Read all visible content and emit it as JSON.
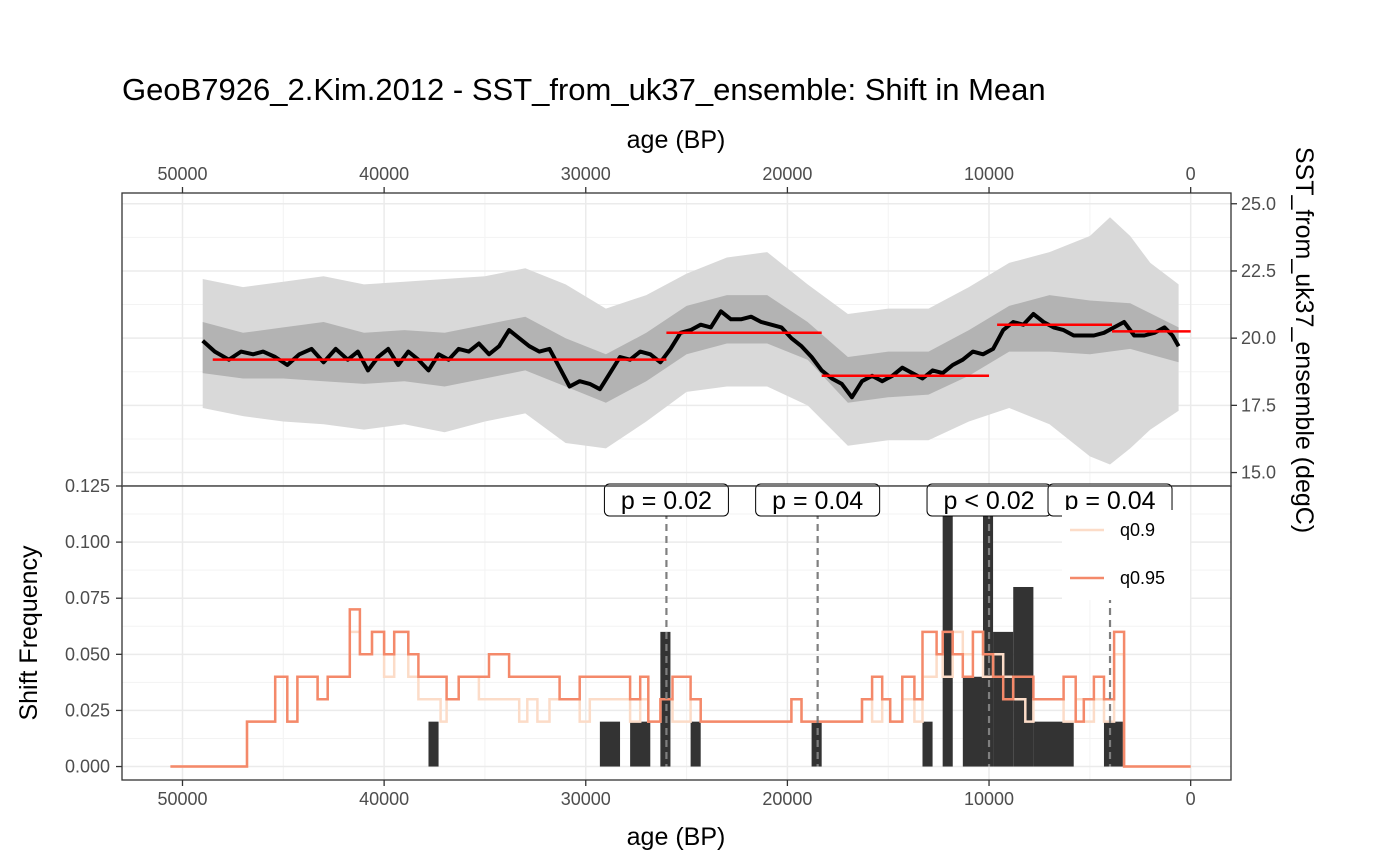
{
  "chart_data": [
    {
      "type": "line",
      "panel": "top",
      "title": "GeoB7926_2.Kim.2012 - SST_from_uk37_ensemble: Shift in Mean",
      "xlabel": "age (BP)",
      "ylabel": "SST_from_uk37_ensemble (degC)",
      "xlim": [
        53000,
        -2000
      ],
      "ylim": [
        14.5,
        25.4
      ],
      "x_ticks": [
        50000,
        40000,
        30000,
        20000,
        10000,
        0
      ],
      "y_ticks": [
        15.0,
        17.5,
        20.0,
        22.5,
        25.0
      ],
      "y_tick_labels": [
        "15.0",
        "17.5",
        "20.0",
        "22.5",
        "25.0"
      ],
      "grid": true,
      "median": {
        "x": [
          49000,
          48400,
          47700,
          47100,
          46500,
          46000,
          45400,
          44800,
          44200,
          43600,
          43000,
          42400,
          41800,
          41300,
          40800,
          40300,
          39800,
          39300,
          38800,
          38300,
          37800,
          37300,
          36800,
          36300,
          35800,
          35300,
          34800,
          34300,
          33800,
          33300,
          32800,
          32300,
          31800,
          31300,
          30800,
          30300,
          29800,
          29300,
          28800,
          28300,
          27800,
          27300,
          26800,
          26300,
          25800,
          25300,
          24800,
          24300,
          23800,
          23300,
          22800,
          22300,
          21800,
          21300,
          20800,
          20300,
          19800,
          19300,
          18800,
          18300,
          17800,
          17300,
          16800,
          16300,
          15800,
          15300,
          14800,
          14300,
          13800,
          13300,
          12800,
          12300,
          11800,
          11300,
          10800,
          10300,
          9800,
          9300,
          8800,
          8300,
          7800,
          7300,
          6800,
          6300,
          5800,
          5300,
          4800,
          4300,
          3800,
          3300,
          2800,
          2300,
          1800,
          1300,
          900,
          600
        ],
        "y": [
          19.9,
          19.5,
          19.2,
          19.5,
          19.4,
          19.5,
          19.3,
          19.0,
          19.4,
          19.6,
          19.1,
          19.6,
          19.2,
          19.5,
          18.8,
          19.3,
          19.6,
          19.0,
          19.5,
          19.2,
          18.8,
          19.4,
          19.2,
          19.6,
          19.5,
          19.8,
          19.4,
          19.7,
          20.3,
          20.0,
          19.7,
          19.5,
          19.6,
          18.9,
          18.2,
          18.4,
          18.3,
          18.1,
          18.7,
          19.3,
          19.2,
          19.5,
          19.4,
          19.1,
          19.6,
          20.2,
          20.3,
          20.5,
          20.4,
          21.0,
          20.7,
          20.7,
          20.8,
          20.6,
          20.5,
          20.4,
          20.0,
          19.7,
          19.3,
          18.8,
          18.5,
          18.3,
          17.8,
          18.4,
          18.6,
          18.4,
          18.6,
          18.9,
          18.7,
          18.5,
          18.8,
          18.7,
          19.0,
          19.2,
          19.5,
          19.4,
          19.6,
          20.3,
          20.6,
          20.5,
          20.9,
          20.6,
          20.4,
          20.3,
          20.1,
          20.1,
          20.1,
          20.2,
          20.4,
          20.6,
          20.1,
          20.1,
          20.2,
          20.4,
          20.1,
          19.7
        ]
      },
      "band_50": {
        "x": [
          49000,
          47000,
          45000,
          43000,
          41000,
          39000,
          37000,
          35000,
          33000,
          31000,
          29000,
          27000,
          25000,
          23000,
          21000,
          19000,
          17000,
          15000,
          13000,
          11000,
          9000,
          7000,
          5000,
          3000,
          600
        ],
        "lower": [
          18.7,
          18.5,
          18.5,
          18.4,
          18.3,
          18.4,
          18.2,
          18.5,
          18.8,
          18.2,
          17.6,
          18.4,
          19.4,
          19.8,
          19.8,
          19.2,
          17.6,
          17.8,
          17.9,
          18.6,
          19.5,
          19.5,
          19.4,
          19.6,
          19.1
        ],
        "upper": [
          20.6,
          20.2,
          20.4,
          20.6,
          20.2,
          20.3,
          20.2,
          20.5,
          20.8,
          20.0,
          19.4,
          20.2,
          21.2,
          21.6,
          21.6,
          20.6,
          19.3,
          19.5,
          19.5,
          20.3,
          21.2,
          21.6,
          21.4,
          21.3,
          20.4
        ]
      },
      "band_95": {
        "x": [
          49000,
          47000,
          45000,
          43000,
          41000,
          39000,
          37000,
          35000,
          33000,
          31000,
          29000,
          27000,
          25000,
          23000,
          21000,
          19000,
          17000,
          15000,
          13000,
          11000,
          9000,
          7000,
          5000,
          4000,
          3000,
          2000,
          600
        ],
        "lower": [
          17.4,
          17.1,
          16.9,
          16.8,
          16.6,
          16.8,
          16.5,
          16.9,
          17.2,
          16.1,
          15.9,
          16.9,
          18.0,
          18.2,
          18.2,
          17.5,
          16.0,
          16.2,
          16.2,
          16.9,
          17.4,
          16.8,
          15.6,
          15.3,
          15.9,
          16.6,
          17.3
        ],
        "upper": [
          22.2,
          21.9,
          22.1,
          22.3,
          22.0,
          22.1,
          22.2,
          22.3,
          22.6,
          22.0,
          21.1,
          21.6,
          22.4,
          23.0,
          23.2,
          22.0,
          20.9,
          21.1,
          21.1,
          21.9,
          22.8,
          23.2,
          23.8,
          24.5,
          23.8,
          22.8,
          22.0
        ]
      },
      "segments": [
        {
          "x0": 48500,
          "x1": 26000,
          "y": 19.2
        },
        {
          "x0": 26000,
          "x1": 18300,
          "y": 20.2
        },
        {
          "x0": 18300,
          "x1": 10000,
          "y": 18.6
        },
        {
          "x0": 9600,
          "x1": 3900,
          "y": 20.5
        },
        {
          "x0": 3900,
          "x1": 0,
          "y": 20.25
        }
      ],
      "colors": {
        "median": "#000000",
        "band_50": "#b3b3b3",
        "band_95": "#d9d9d9",
        "segments": "#ff0000"
      }
    },
    {
      "type": "bar",
      "panel": "bottom",
      "xlabel": "age (BP)",
      "ylabel": "Shift Frequency",
      "xlim": [
        53000,
        -2000
      ],
      "ylim": [
        -0.006,
        0.125
      ],
      "x_ticks": [
        50000,
        40000,
        30000,
        20000,
        10000,
        0
      ],
      "y_ticks": [
        0.0,
        0.025,
        0.05,
        0.075,
        0.1,
        0.125
      ],
      "y_tick_labels": [
        "0.000",
        "0.025",
        "0.050",
        "0.075",
        "0.100",
        "0.125"
      ],
      "grid": true,
      "bars": [
        {
          "x0": 37800,
          "x1": 37300,
          "y": 0.02
        },
        {
          "x0": 29300,
          "x1": 28300,
          "y": 0.02
        },
        {
          "x0": 27800,
          "x1": 26800,
          "y": 0.02
        },
        {
          "x0": 26300,
          "x1": 25800,
          "y": 0.06
        },
        {
          "x0": 24800,
          "x1": 24300,
          "y": 0.02
        },
        {
          "x0": 18800,
          "x1": 18300,
          "y": 0.02
        },
        {
          "x0": 13300,
          "x1": 12800,
          "y": 0.02
        },
        {
          "x0": 12300,
          "x1": 11800,
          "y": 0.12
        },
        {
          "x0": 11300,
          "x1": 10300,
          "y": 0.04
        },
        {
          "x0": 10300,
          "x1": 9800,
          "y": 0.12
        },
        {
          "x0": 9800,
          "x1": 8800,
          "y": 0.06
        },
        {
          "x0": 8800,
          "x1": 7800,
          "y": 0.08
        },
        {
          "x0": 7800,
          "x1": 5800,
          "y": 0.02
        },
        {
          "x0": 4300,
          "x1": 3300,
          "y": 0.02
        }
      ],
      "p_values": [
        {
          "x": 26000,
          "label": "p = 0.02"
        },
        {
          "x": 18500,
          "label": "p = 0.04"
        },
        {
          "x": 10000,
          "label": "p < 0.02"
        },
        {
          "x": 4000,
          "label": "p = 0.04"
        }
      ],
      "series": [
        {
          "name": "q0.9",
          "color": "#fcdcc8",
          "x": [
            50600,
            46800,
            46800,
            45400,
            45400,
            44800,
            44800,
            44300,
            44300,
            43300,
            43300,
            42800,
            42800,
            41700,
            41700,
            41200,
            41200,
            40600,
            40600,
            40000,
            40000,
            39500,
            39500,
            38800,
            38800,
            38300,
            38300,
            37200,
            37200,
            36900,
            36900,
            36300,
            36300,
            35300,
            35300,
            33300,
            33300,
            32900,
            32900,
            32400,
            32400,
            31800,
            31800,
            30300,
            30300,
            29800,
            29800,
            27800,
            27800,
            27300,
            27300,
            26900,
            26900,
            26300,
            26300,
            25700,
            25700,
            24800,
            24800,
            24300,
            24300,
            23800,
            23800,
            19800,
            19800,
            19300,
            19300,
            16300,
            16300,
            15800,
            15800,
            15300,
            15300,
            14900,
            14900,
            14300,
            14300,
            13700,
            13700,
            13300,
            13300,
            12600,
            12600,
            12300,
            12300,
            11800,
            11800,
            11300,
            11300,
            10800,
            10800,
            10300,
            10300,
            9800,
            9800,
            9300,
            9300,
            8800,
            8800,
            8200,
            8200,
            7800,
            7800,
            6300,
            6300,
            5700,
            5700,
            5300,
            5300,
            4800,
            4800,
            4300,
            4300,
            3800,
            3800,
            3300,
            3300,
            0
          ],
          "y": [
            0,
            0,
            0.02,
            0.02,
            0.04,
            0.04,
            0.02,
            0.02,
            0.04,
            0.04,
            0.03,
            0.03,
            0.04,
            0.04,
            0.06,
            0.06,
            0.05,
            0.05,
            0.06,
            0.06,
            0.04,
            0.04,
            0.06,
            0.06,
            0.04,
            0.04,
            0.03,
            0.03,
            0.02,
            0.02,
            0.03,
            0.03,
            0.04,
            0.04,
            0.03,
            0.03,
            0.02,
            0.02,
            0.03,
            0.03,
            0.02,
            0.02,
            0.03,
            0.03,
            0.02,
            0.02,
            0.03,
            0.03,
            0.02,
            0.02,
            0.03,
            0.03,
            0.02,
            0.02,
            0.03,
            0.03,
            0.02,
            0.02,
            0.03,
            0.03,
            0.02,
            0.02,
            0.02,
            0.02,
            0.03,
            0.03,
            0.02,
            0.02,
            0.03,
            0.03,
            0.02,
            0.02,
            0.03,
            0.03,
            0.02,
            0.02,
            0.03,
            0.03,
            0.02,
            0.02,
            0.04,
            0.04,
            0.05,
            0.05,
            0.04,
            0.04,
            0.06,
            0.06,
            0.05,
            0.05,
            0.06,
            0.06,
            0.04,
            0.04,
            0.05,
            0.05,
            0.04,
            0.04,
            0.03,
            0.03,
            0.02,
            0.02,
            0.03,
            0.03,
            0.02,
            0.02,
            0.03,
            0.03,
            0.02,
            0.02,
            0.03,
            0.03,
            0.02,
            0.02,
            0.05,
            0.05,
            0,
            0
          ]
        },
        {
          "name": "q0.95",
          "color": "#f4896a",
          "x": [
            50600,
            46800,
            46800,
            45400,
            45400,
            44800,
            44800,
            44300,
            44300,
            43300,
            43300,
            42800,
            42800,
            41700,
            41700,
            41200,
            41200,
            40600,
            40600,
            40000,
            40000,
            39500,
            39500,
            38800,
            38800,
            38300,
            38300,
            37200,
            37200,
            36900,
            36900,
            36300,
            36300,
            35300,
            35300,
            34800,
            34800,
            33800,
            33800,
            32900,
            32900,
            31300,
            31300,
            30300,
            30300,
            29800,
            29800,
            27800,
            27800,
            27300,
            27300,
            26900,
            26900,
            26300,
            26300,
            25700,
            25700,
            24800,
            24800,
            24300,
            24300,
            23800,
            23800,
            19800,
            19800,
            19300,
            19300,
            16300,
            16300,
            15800,
            15800,
            15300,
            15300,
            14900,
            14900,
            14300,
            14300,
            13700,
            13700,
            13300,
            13300,
            12600,
            12600,
            12300,
            12300,
            11800,
            11800,
            11300,
            11300,
            10800,
            10800,
            10300,
            10300,
            9800,
            9800,
            9300,
            9300,
            8800,
            8800,
            8200,
            8200,
            7800,
            7800,
            6300,
            6300,
            5700,
            5700,
            5300,
            5300,
            4800,
            4800,
            4300,
            4300,
            3800,
            3800,
            3300,
            3300,
            0
          ],
          "y": [
            0,
            0,
            0.02,
            0.02,
            0.04,
            0.04,
            0.02,
            0.02,
            0.04,
            0.04,
            0.03,
            0.03,
            0.04,
            0.04,
            0.07,
            0.07,
            0.05,
            0.05,
            0.06,
            0.06,
            0.05,
            0.05,
            0.06,
            0.06,
            0.05,
            0.05,
            0.04,
            0.04,
            0.04,
            0.04,
            0.03,
            0.03,
            0.04,
            0.04,
            0.04,
            0.04,
            0.05,
            0.05,
            0.04,
            0.04,
            0.04,
            0.04,
            0.03,
            0.03,
            0.04,
            0.04,
            0.04,
            0.04,
            0.03,
            0.03,
            0.04,
            0.04,
            0.02,
            0.02,
            0.03,
            0.03,
            0.04,
            0.04,
            0.03,
            0.03,
            0.02,
            0.02,
            0.02,
            0.02,
            0.03,
            0.03,
            0.02,
            0.02,
            0.03,
            0.03,
            0.04,
            0.04,
            0.03,
            0.03,
            0.02,
            0.02,
            0.04,
            0.04,
            0.03,
            0.03,
            0.06,
            0.06,
            0.05,
            0.05,
            0.06,
            0.06,
            0.05,
            0.05,
            0.04,
            0.04,
            0.06,
            0.06,
            0.05,
            0.05,
            0.04,
            0.04,
            0.03,
            0.03,
            0.04,
            0.04,
            0.04,
            0.04,
            0.03,
            0.03,
            0.04,
            0.04,
            0.02,
            0.02,
            0.03,
            0.03,
            0.04,
            0.04,
            0.03,
            0.03,
            0.06,
            0.06,
            0,
            0
          ]
        }
      ],
      "legend": {
        "placement": "top-right",
        "entries": [
          "q0.9",
          "q0.95"
        ]
      },
      "colors": {
        "bars": "#333333",
        "pvalue_lines": "#7f7f7f"
      }
    }
  ]
}
